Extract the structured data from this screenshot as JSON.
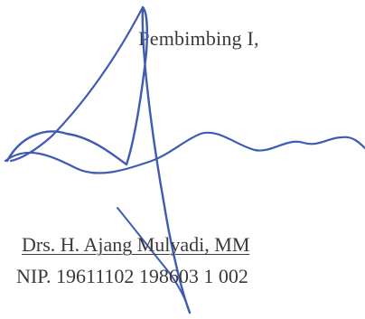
{
  "document": {
    "role": "Pembimbing I,",
    "signer_name": "Drs. H. Ajang Mulyadi, MM",
    "signer_nip": "NIP. 19611102 198603 1 002",
    "ink_color": "#3f5bb3",
    "signature_label": "handwritten-signature"
  }
}
